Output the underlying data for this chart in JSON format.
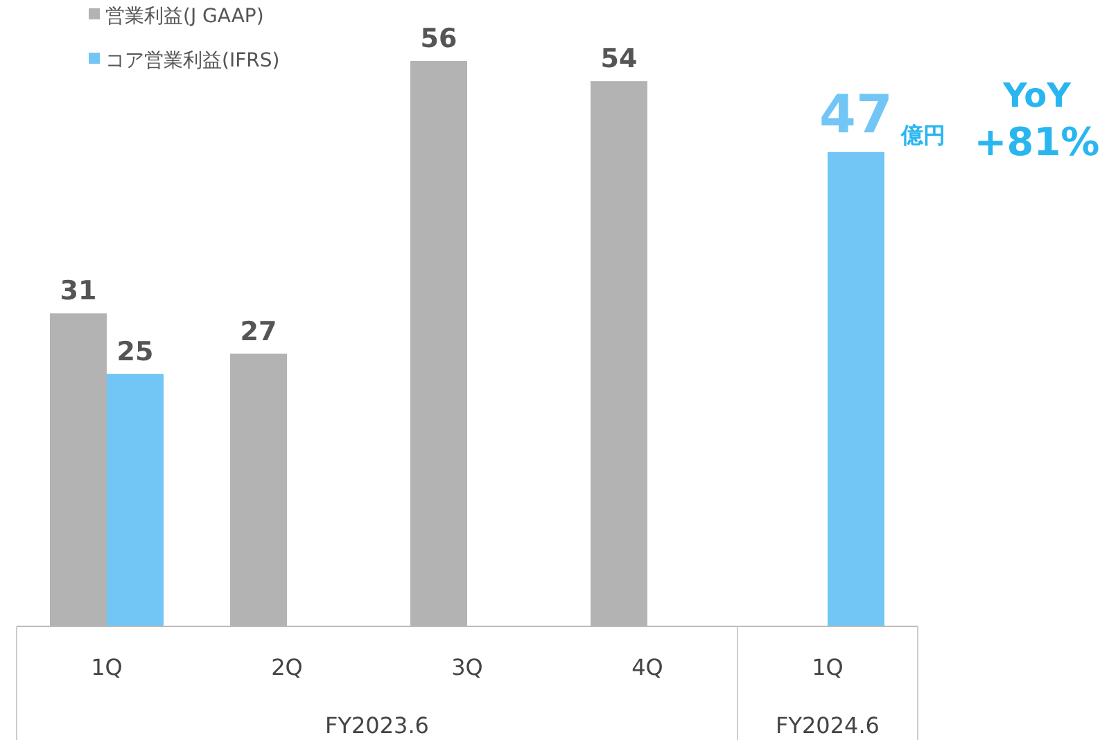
{
  "chart_data": {
    "type": "bar",
    "categories": [
      "1Q",
      "2Q",
      "3Q",
      "4Q",
      "1Q"
    ],
    "series": [
      {
        "name": "営業利益(J GAAP)",
        "color": "#b3b3b3",
        "values": [
          31,
          27,
          56,
          54,
          null
        ]
      },
      {
        "name": "コア営業利益(IFRS)",
        "color": "#72c6f5",
        "values": [
          25,
          null,
          null,
          null,
          47
        ]
      }
    ],
    "data_labels": true,
    "legend": "top left",
    "annotations": [
      "FY2023.6",
      "FY2024.6",
      "億円",
      "YoY",
      "+81%"
    ]
  }
}
